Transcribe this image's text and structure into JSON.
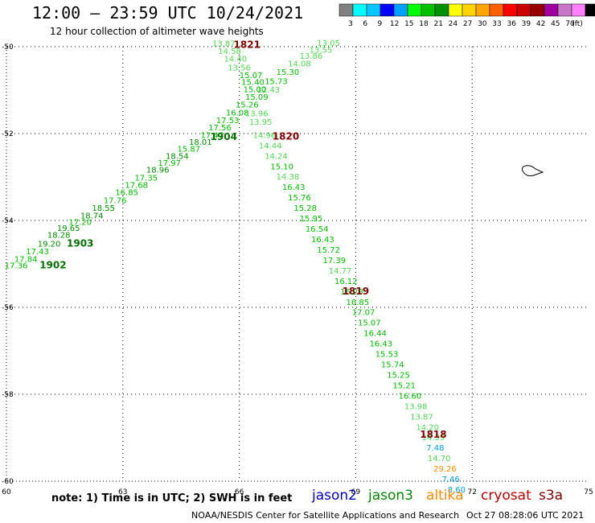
{
  "header": {
    "title": "12:00 — 23:59 UTC 10/24/2021",
    "subtitle": "12 hour collection of altimeter wave heights"
  },
  "legend": {
    "unit": "(ft)",
    "colors": [
      "#808080",
      "#00ffff",
      "#00c8ff",
      "#0000ff",
      "#00a0ff",
      "#00ff00",
      "#00c000",
      "#009000",
      "#ffff00",
      "#ffd200",
      "#ffa500",
      "#ff6000",
      "#ff0000",
      "#c80000",
      "#960000",
      "#a000a0",
      "#c878c8",
      "#ff80ff",
      "#000000"
    ],
    "ticks": [
      "3",
      "6",
      "9",
      "12",
      "15",
      "18",
      "21",
      "24",
      "27",
      "30",
      "33",
      "36",
      "39",
      "42",
      "45",
      "70"
    ]
  },
  "axes": {
    "lon_labels": [
      "60",
      "63",
      "66",
      "69",
      "72",
      "75"
    ],
    "lat_labels": [
      "-50",
      "-52",
      "-54",
      "-56",
      "-58",
      "-60"
    ]
  },
  "passes": [
    {
      "label": "1821",
      "lon": 66.2,
      "lat": -50.03
    },
    {
      "label": "1820",
      "lon": 67.2,
      "lat": -52.14
    },
    {
      "label": "1819",
      "lon": 69.0,
      "lat": -55.7
    },
    {
      "label": "1818",
      "lon": 71.0,
      "lat": -59.0
    },
    {
      "label": "1904",
      "lon": 65.6,
      "lat": -52.15
    },
    {
      "label": "1903",
      "lon": 61.9,
      "lat": -54.6
    },
    {
      "label": "1902",
      "lon": 61.2,
      "lat": -55.1
    }
  ],
  "swh_asc": [
    {
      "v": "17.36",
      "lon": 60.25,
      "lat": -55.1
    },
    {
      "v": "17.84",
      "lon": 60.5,
      "lat": -54.95
    },
    {
      "v": "17.43",
      "lon": 60.8,
      "lat": -54.78
    },
    {
      "v": "19.20",
      "lon": 61.1,
      "lat": -54.6
    },
    {
      "v": "18.28",
      "lon": 61.35,
      "lat": -54.4
    },
    {
      "v": "19.65",
      "lon": 61.6,
      "lat": -54.24
    },
    {
      "v": "17.20",
      "lon": 61.9,
      "lat": -54.1
    },
    {
      "v": "18.74",
      "lon": 62.2,
      "lat": -53.95
    },
    {
      "v": "18.55",
      "lon": 62.5,
      "lat": -53.78
    },
    {
      "v": "17.76",
      "lon": 62.8,
      "lat": -53.6
    },
    {
      "v": "16.85",
      "lon": 63.1,
      "lat": -53.42
    },
    {
      "v": "17.68",
      "lon": 63.35,
      "lat": -53.25
    },
    {
      "v": "17.35",
      "lon": 63.6,
      "lat": -53.08
    },
    {
      "v": "18.96",
      "lon": 63.9,
      "lat": -52.9
    },
    {
      "v": "17.97",
      "lon": 64.2,
      "lat": -52.74
    },
    {
      "v": "18.54",
      "lon": 64.4,
      "lat": -52.58
    },
    {
      "v": "15.87",
      "lon": 64.7,
      "lat": -52.42
    },
    {
      "v": "18.01",
      "lon": 65.0,
      "lat": -52.26
    },
    {
      "v": "17.47",
      "lon": 65.3,
      "lat": -52.1
    },
    {
      "v": "17.56",
      "lon": 65.5,
      "lat": -51.93
    },
    {
      "v": "17.53",
      "lon": 65.7,
      "lat": -51.76
    },
    {
      "v": "16.08",
      "lon": 65.95,
      "lat": -51.58
    },
    {
      "v": "15.26",
      "lon": 66.2,
      "lat": -51.4
    },
    {
      "v": "15.09",
      "lon": 66.45,
      "lat": -51.22
    },
    {
      "v": "12.43",
      "lon": 66.75,
      "lat": -51.06
    },
    {
      "v": "15.73",
      "lon": 66.95,
      "lat": -50.86
    },
    {
      "v": "15.30",
      "lon": 67.25,
      "lat": -50.65
    },
    {
      "v": "14.08",
      "lon": 67.55,
      "lat": -50.45
    },
    {
      "v": "13.86",
      "lon": 67.85,
      "lat": -50.28
    },
    {
      "v": "13.55",
      "lon": 68.1,
      "lat": -50.14
    },
    {
      "v": "13.05",
      "lon": 68.3,
      "lat": -49.98
    }
  ],
  "swh_desc": [
    {
      "v": "13.87",
      "lon": 65.6,
      "lat": -49.99
    },
    {
      "v": "14.58",
      "lon": 65.75,
      "lat": -50.17
    },
    {
      "v": "14.40",
      "lon": 65.9,
      "lat": -50.34
    },
    {
      "v": "13.56",
      "lon": 66.0,
      "lat": -50.55
    },
    {
      "v": "15.07",
      "lon": 66.3,
      "lat": -50.72
    },
    {
      "v": "15.40",
      "lon": 66.35,
      "lat": -50.88
    },
    {
      "v": "15.00",
      "lon": 66.4,
      "lat": -51.05
    },
    {
      "v": "13.96",
      "lon": 66.45,
      "lat": -51.6
    },
    {
      "v": "13.95",
      "lon": 66.55,
      "lat": -51.8
    },
    {
      "v": "14.96",
      "lon": 66.65,
      "lat": -52.1
    },
    {
      "v": "14.44",
      "lon": 66.8,
      "lat": -52.34
    },
    {
      "v": "14.24",
      "lon": 66.95,
      "lat": -52.58
    },
    {
      "v": "15.10",
      "lon": 67.1,
      "lat": -52.82
    },
    {
      "v": "14.38",
      "lon": 67.25,
      "lat": -53.06
    },
    {
      "v": "16.43",
      "lon": 67.4,
      "lat": -53.3
    },
    {
      "v": "15.76",
      "lon": 67.55,
      "lat": -53.54
    },
    {
      "v": "15.28",
      "lon": 67.7,
      "lat": -53.78
    },
    {
      "v": "15.95",
      "lon": 67.85,
      "lat": -54.02
    },
    {
      "v": "16.54",
      "lon": 68.0,
      "lat": -54.26
    },
    {
      "v": "16.43",
      "lon": 68.15,
      "lat": -54.5
    },
    {
      "v": "15.72",
      "lon": 68.3,
      "lat": -54.74
    },
    {
      "v": "17.39",
      "lon": 68.45,
      "lat": -54.98
    },
    {
      "v": "14.77",
      "lon": 68.6,
      "lat": -55.22
    },
    {
      "v": "16.12",
      "lon": 68.75,
      "lat": -55.46
    },
    {
      "v": "16.28",
      "lon": 68.9,
      "lat": -55.7
    },
    {
      "v": "16.85",
      "lon": 69.05,
      "lat": -55.94
    },
    {
      "v": "17.07",
      "lon": 69.2,
      "lat": -56.18
    },
    {
      "v": "15.07",
      "lon": 69.35,
      "lat": -56.42
    },
    {
      "v": "16.44",
      "lon": 69.5,
      "lat": -56.66
    },
    {
      "v": "16.43",
      "lon": 69.65,
      "lat": -56.9
    },
    {
      "v": "15.53",
      "lon": 69.8,
      "lat": -57.14
    },
    {
      "v": "15.74",
      "lon": 69.95,
      "lat": -57.38
    },
    {
      "v": "15.25",
      "lon": 70.1,
      "lat": -57.62
    },
    {
      "v": "15.21",
      "lon": 70.25,
      "lat": -57.86
    },
    {
      "v": "16.60",
      "lon": 70.4,
      "lat": -58.1
    },
    {
      "v": "13.98",
      "lon": 70.55,
      "lat": -58.34
    },
    {
      "v": "13.87",
      "lon": 70.7,
      "lat": -58.58
    },
    {
      "v": "14.20",
      "lon": 70.85,
      "lat": -58.82
    },
    {
      "v": "14.39",
      "lon": 71.0,
      "lat": -59.06
    },
    {
      "v": "7.48",
      "lon": 71.05,
      "lat": -59.3
    },
    {
      "v": "14.70",
      "lon": 71.15,
      "lat": -59.54
    },
    {
      "v": "29.26",
      "lon": 71.3,
      "lat": -59.78
    },
    {
      "v": "7.46",
      "lon": 71.45,
      "lat": -60.02
    },
    {
      "v": "8.60",
      "lon": 71.6,
      "lat": -60.26
    }
  ],
  "note": "note: 1) Time is in UTC; 2) SWH is in feet",
  "missions": [
    {
      "name": "jason2",
      "color": "#0000c8"
    },
    {
      "name": "jason3",
      "color": "#008800"
    },
    {
      "name": "altika",
      "color": "#ff8c00"
    },
    {
      "name": "cryosat",
      "color": "#c00000"
    },
    {
      "name": "s3a",
      "color": "#800000"
    }
  ],
  "credit": "NOAA/NESDIS Center for Satellite Applications and Research",
  "stamp": "Oct 27 08:28:06 UTC 2021"
}
